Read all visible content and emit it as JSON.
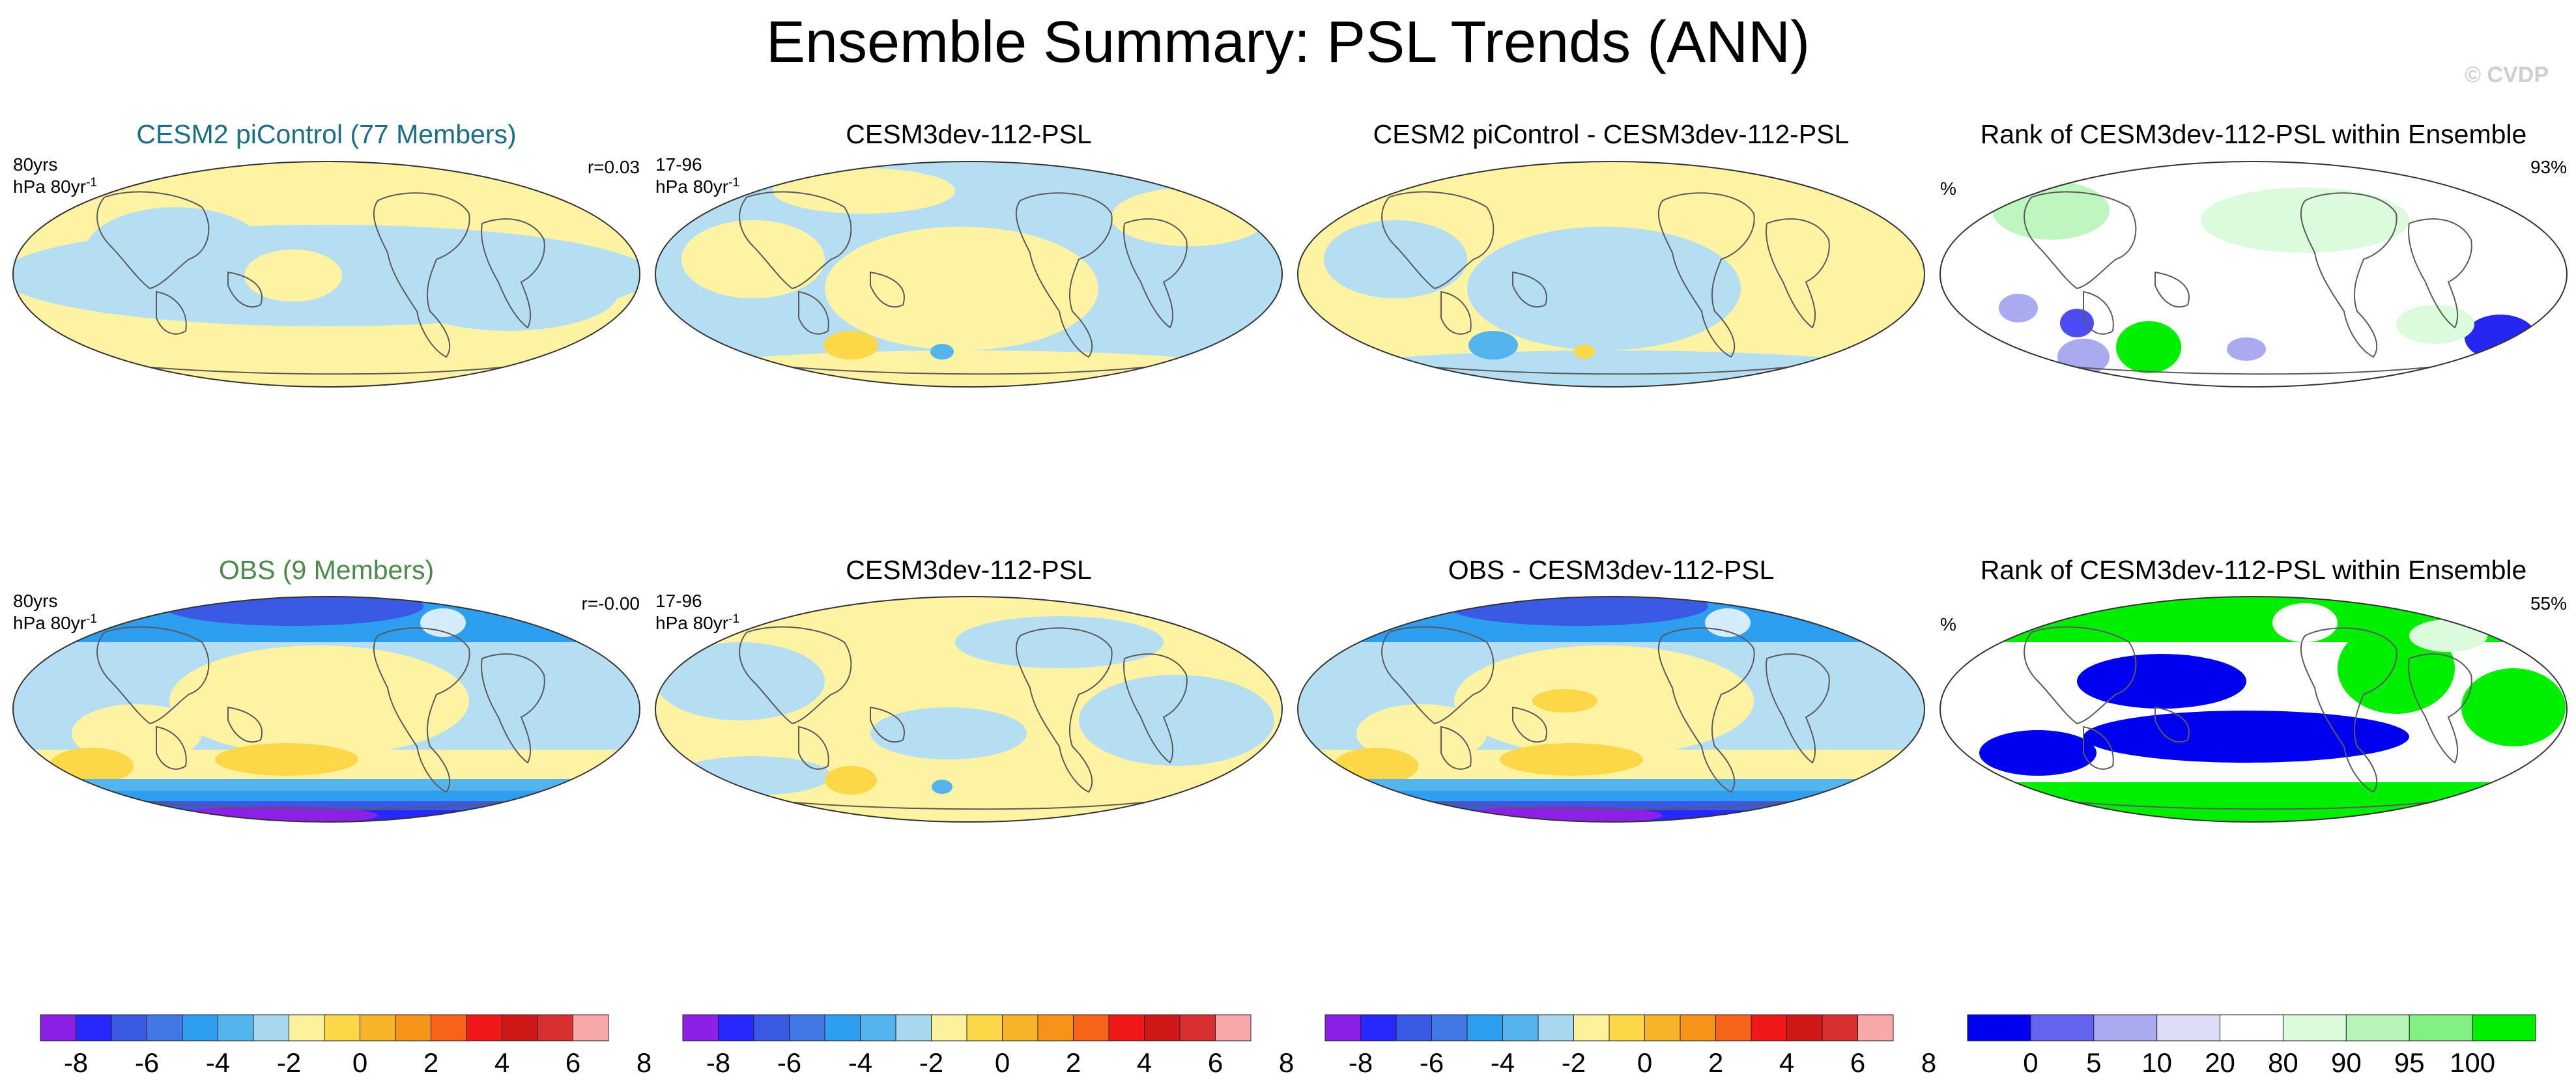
{
  "title": "Ensemble Summary: PSL Trends (ANN)",
  "copyright": "© CVDP",
  "colors": {
    "trend_scale": [
      "#8c20e6",
      "#2727ff",
      "#3a5ae6",
      "#4178e6",
      "#2d9ef0",
      "#54b5ee",
      "#a8d8f0",
      "#fcf29c",
      "#fcd848",
      "#f8b428",
      "#f59418",
      "#f56418",
      "#f01818",
      "#d01818",
      "#d83030",
      "#f8a8a8"
    ],
    "rank_scale": [
      "#0000f0",
      "#6464f0",
      "#aaaaf0",
      "#dcdcf6",
      "#ffffff",
      "#dcfadc",
      "#b8f4b8",
      "#82f082",
      "#00ee00"
    ],
    "pale_yellow": "#fdf3a3",
    "pale_blue": "#b6def2"
  },
  "panels": [
    {
      "title": "CESM2 piControl (77 Members)",
      "title_color": "#1a6e8a",
      "left_line1": "80yrs",
      "left_unit": "hPa 80yr",
      "left_exp": "-1",
      "right_stat": "r=0.03"
    },
    {
      "title": "CESM3dev-112-PSL",
      "title_color": "#000000",
      "left_line1": "17-96",
      "left_unit": "hPa 80yr",
      "left_exp": "-1",
      "right_stat": ""
    },
    {
      "title": "CESM2 piControl - CESM3dev-112-PSL",
      "title_color": "#000000",
      "left_line1": "",
      "left_unit": "",
      "left_exp": "",
      "right_stat": ""
    },
    {
      "title": "Rank of CESM3dev-112-PSL within Ensemble",
      "title_color": "#000000",
      "left_line1": "%",
      "left_unit": "",
      "left_exp": "",
      "right_stat": "93%"
    },
    {
      "title": "OBS (9 Members)",
      "title_color": "#4a8a4a",
      "left_line1": "80yrs",
      "left_unit": "hPa 80yr",
      "left_exp": "-1",
      "right_stat": "r=-0.00"
    },
    {
      "title": "CESM3dev-112-PSL",
      "title_color": "#000000",
      "left_line1": "17-96",
      "left_unit": "hPa 80yr",
      "left_exp": "-1",
      "right_stat": ""
    },
    {
      "title": "OBS - CESM3dev-112-PSL",
      "title_color": "#000000",
      "left_line1": "",
      "left_unit": "",
      "left_exp": "",
      "right_stat": ""
    },
    {
      "title": "Rank of CESM3dev-112-PSL within Ensemble",
      "title_color": "#000000",
      "left_line1": "%",
      "left_unit": "",
      "left_exp": "",
      "right_stat": "55%"
    }
  ],
  "chart_data": {
    "type": "heatmap",
    "title": "Ensemble Summary: PSL Trends (ANN)",
    "projection": "robinson",
    "trend_colorbar": {
      "ticks": [
        "-8",
        "-6",
        "-4",
        "-2",
        "0",
        "2",
        "4",
        "6",
        "8"
      ]
    },
    "rank_colorbar": {
      "ticks": [
        "0",
        "5",
        "10",
        "20",
        "80",
        "90",
        "95",
        "100"
      ]
    }
  }
}
